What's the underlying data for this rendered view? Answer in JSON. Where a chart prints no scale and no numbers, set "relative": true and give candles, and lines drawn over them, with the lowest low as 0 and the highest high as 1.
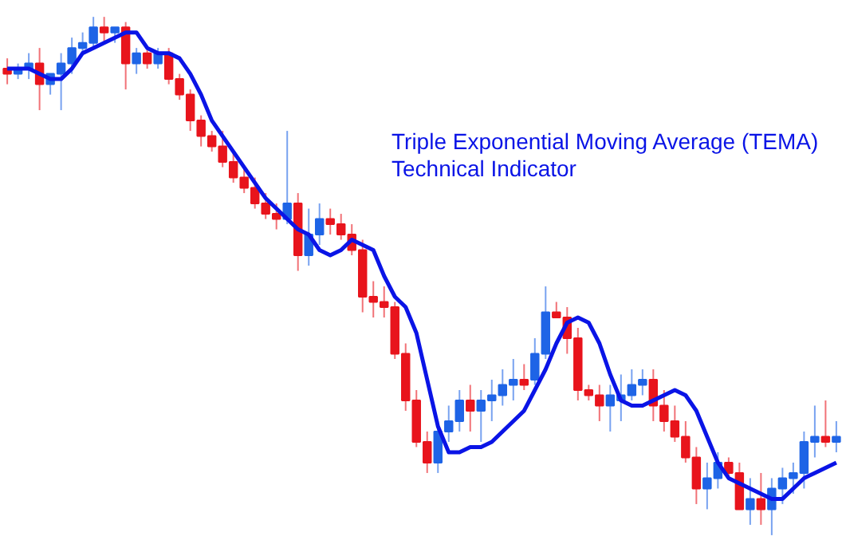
{
  "chart_data": {
    "type": "candlestick",
    "relative": true,
    "annotations": [
      "Triple Exponential Moving Average (TEMA)",
      "Technical Indicator"
    ],
    "categories": [
      null,
      null,
      null,
      null,
      null,
      null,
      null,
      null,
      null,
      null,
      null,
      null,
      null,
      null,
      null,
      null,
      null,
      null,
      null,
      null,
      null,
      null,
      null,
      null,
      null,
      null,
      null,
      null,
      null,
      null,
      null,
      null,
      null,
      null,
      null,
      null,
      null,
      null,
      null,
      null,
      null,
      null,
      null,
      null,
      null,
      null,
      null,
      null,
      null,
      null,
      null,
      null,
      null,
      null,
      null,
      null,
      null,
      null,
      null,
      null,
      null,
      null,
      null,
      null,
      null,
      null,
      null,
      null,
      null,
      null,
      null,
      null,
      null,
      null,
      null,
      null,
      null,
      null
    ],
    "series": [
      {
        "colors": [
          "#e8141c",
          "#1e64e6",
          "#1e64e6",
          "#e8141c",
          "#1e64e6",
          "#1e64e6",
          "#1e64e6",
          "#1e64e6",
          "#1e64e6",
          "#e8141c",
          "#1e64e6",
          "#e8141c",
          "#1e64e6",
          "#e8141c",
          "#1e64e6",
          "#e8141c",
          "#e8141c",
          "#e8141c",
          "#e8141c",
          "#e8141c",
          "#e8141c",
          "#e8141c",
          "#e8141c",
          "#e8141c",
          "#e8141c",
          "#e8141c",
          "#1e64e6",
          "#e8141c",
          "#1e64e6",
          "#1e64e6",
          "#e8141c",
          "#e8141c",
          "#e8141c",
          "#e8141c",
          "#e8141c",
          "#e8141c",
          "#e8141c",
          "#e8141c",
          "#e8141c",
          "#e8141c",
          "#1e64e6",
          "#1e64e6",
          "#1e64e6",
          "#e8141c",
          "#1e64e6",
          "#1e64e6",
          "#1e64e6",
          "#1e64e6",
          "#e8141c",
          "#1e64e6",
          "#1e64e6",
          "#e8141c",
          "#e8141c",
          "#e8141c",
          "#e8141c",
          "#e8141c",
          "#1e64e6",
          "#1e64e6",
          "#1e64e6",
          "#1e64e6",
          "#e8141c",
          "#e8141c",
          "#e8141c",
          "#e8141c",
          "#e8141c",
          "#1e64e6",
          "#1e64e6",
          "#e8141c",
          "#e8141c",
          "#1e64e6",
          "#e8141c",
          "#1e64e6",
          "#1e64e6",
          "#1e64e6",
          "#1e64e6",
          "#1e64e6",
          "#e8141c",
          "#1e64e6"
        ],
        "ohlc": [
          [
            0.9,
            0.92,
            0.87,
            0.89
          ],
          [
            0.89,
            0.91,
            0.88,
            0.9
          ],
          [
            0.9,
            0.93,
            0.88,
            0.91
          ],
          [
            0.91,
            0.94,
            0.82,
            0.87
          ],
          [
            0.87,
            0.89,
            0.85,
            0.89
          ],
          [
            0.89,
            0.93,
            0.82,
            0.91
          ],
          [
            0.91,
            0.96,
            0.89,
            0.94
          ],
          [
            0.94,
            0.97,
            0.93,
            0.95
          ],
          [
            0.95,
            1.0,
            0.94,
            0.98
          ],
          [
            0.98,
            1.0,
            0.95,
            0.97
          ],
          [
            0.97,
            0.98,
            0.95,
            0.98
          ],
          [
            0.98,
            0.99,
            0.86,
            0.91
          ],
          [
            0.91,
            0.94,
            0.89,
            0.93
          ],
          [
            0.93,
            0.94,
            0.9,
            0.91
          ],
          [
            0.91,
            0.94,
            0.9,
            0.93
          ],
          [
            0.93,
            0.94,
            0.87,
            0.88
          ],
          [
            0.88,
            0.89,
            0.84,
            0.85
          ],
          [
            0.85,
            0.86,
            0.78,
            0.8
          ],
          [
            0.8,
            0.81,
            0.75,
            0.77
          ],
          [
            0.77,
            0.78,
            0.74,
            0.75
          ],
          [
            0.75,
            0.78,
            0.71,
            0.72
          ],
          [
            0.72,
            0.74,
            0.68,
            0.69
          ],
          [
            0.69,
            0.71,
            0.66,
            0.67
          ],
          [
            0.67,
            0.69,
            0.63,
            0.64
          ],
          [
            0.64,
            0.66,
            0.61,
            0.62
          ],
          [
            0.62,
            0.64,
            0.59,
            0.61
          ],
          [
            0.61,
            0.78,
            0.6,
            0.64
          ],
          [
            0.64,
            0.66,
            0.51,
            0.54
          ],
          [
            0.54,
            0.63,
            0.52,
            0.58
          ],
          [
            0.58,
            0.64,
            0.56,
            0.61
          ],
          [
            0.61,
            0.63,
            0.58,
            0.6
          ],
          [
            0.6,
            0.62,
            0.57,
            0.58
          ],
          [
            0.58,
            0.6,
            0.54,
            0.55
          ],
          [
            0.55,
            0.57,
            0.43,
            0.46
          ],
          [
            0.46,
            0.49,
            0.42,
            0.45
          ],
          [
            0.45,
            0.48,
            0.42,
            0.44
          ],
          [
            0.44,
            0.45,
            0.34,
            0.35
          ],
          [
            0.35,
            0.37,
            0.24,
            0.26
          ],
          [
            0.26,
            0.28,
            0.17,
            0.18
          ],
          [
            0.18,
            0.2,
            0.12,
            0.14
          ],
          [
            0.14,
            0.22,
            0.12,
            0.2
          ],
          [
            0.2,
            0.25,
            0.18,
            0.22
          ],
          [
            0.22,
            0.28,
            0.2,
            0.26
          ],
          [
            0.26,
            0.29,
            0.2,
            0.24
          ],
          [
            0.24,
            0.28,
            0.18,
            0.26
          ],
          [
            0.26,
            0.3,
            0.22,
            0.27
          ],
          [
            0.27,
            0.32,
            0.25,
            0.29
          ],
          [
            0.29,
            0.34,
            0.26,
            0.3
          ],
          [
            0.3,
            0.33,
            0.28,
            0.29
          ],
          [
            0.3,
            0.38,
            0.29,
            0.35
          ],
          [
            0.35,
            0.48,
            0.34,
            0.43
          ],
          [
            0.43,
            0.45,
            0.42,
            0.42
          ],
          [
            0.42,
            0.44,
            0.35,
            0.38
          ],
          [
            0.38,
            0.4,
            0.26,
            0.28
          ],
          [
            0.28,
            0.29,
            0.26,
            0.27
          ],
          [
            0.27,
            0.29,
            0.22,
            0.25
          ],
          [
            0.25,
            0.29,
            0.2,
            0.27
          ],
          [
            0.26,
            0.31,
            0.22,
            0.27
          ],
          [
            0.27,
            0.32,
            0.26,
            0.29
          ],
          [
            0.29,
            0.32,
            0.27,
            0.3
          ],
          [
            0.3,
            0.32,
            0.22,
            0.25
          ],
          [
            0.25,
            0.28,
            0.2,
            0.22
          ],
          [
            0.22,
            0.25,
            0.18,
            0.19
          ],
          [
            0.19,
            0.22,
            0.14,
            0.15
          ],
          [
            0.15,
            0.17,
            0.06,
            0.09
          ],
          [
            0.09,
            0.14,
            0.05,
            0.11
          ],
          [
            0.11,
            0.16,
            0.09,
            0.14
          ],
          [
            0.14,
            0.15,
            0.11,
            0.12
          ],
          [
            0.12,
            0.14,
            0.05,
            0.05
          ],
          [
            0.05,
            0.11,
            0.02,
            0.07
          ],
          [
            0.07,
            0.12,
            0.02,
            0.05
          ],
          [
            0.05,
            0.11,
            0.0,
            0.09
          ],
          [
            0.09,
            0.13,
            0.06,
            0.11
          ],
          [
            0.11,
            0.14,
            0.08,
            0.12
          ],
          [
            0.12,
            0.2,
            0.09,
            0.18
          ],
          [
            0.18,
            0.25,
            0.15,
            0.19
          ],
          [
            0.19,
            0.26,
            0.17,
            0.18
          ],
          [
            0.18,
            0.22,
            0.16,
            0.19
          ]
        ]
      },
      {
        "type": "line",
        "color": "#0a14e6",
        "line_style": "solid",
        "marker": "none",
        "values": [
          0.9,
          0.9,
          0.9,
          0.89,
          0.88,
          0.88,
          0.9,
          0.93,
          0.94,
          0.95,
          0.96,
          0.97,
          0.97,
          0.94,
          0.93,
          0.93,
          0.92,
          0.89,
          0.85,
          0.8,
          0.77,
          0.74,
          0.71,
          0.68,
          0.65,
          0.63,
          0.61,
          0.59,
          0.58,
          0.55,
          0.54,
          0.55,
          0.57,
          0.56,
          0.55,
          0.5,
          0.46,
          0.44,
          0.39,
          0.3,
          0.21,
          0.16,
          0.16,
          0.17,
          0.17,
          0.18,
          0.2,
          0.22,
          0.24,
          0.28,
          0.32,
          0.37,
          0.41,
          0.42,
          0.41,
          0.37,
          0.31,
          0.26,
          0.25,
          0.25,
          0.26,
          0.27,
          0.28,
          0.27,
          0.24,
          0.19,
          0.14,
          0.11,
          0.1,
          0.09,
          0.08,
          0.07,
          0.07,
          0.09,
          0.11,
          0.12,
          0.13,
          0.14
        ]
      }
    ]
  }
}
